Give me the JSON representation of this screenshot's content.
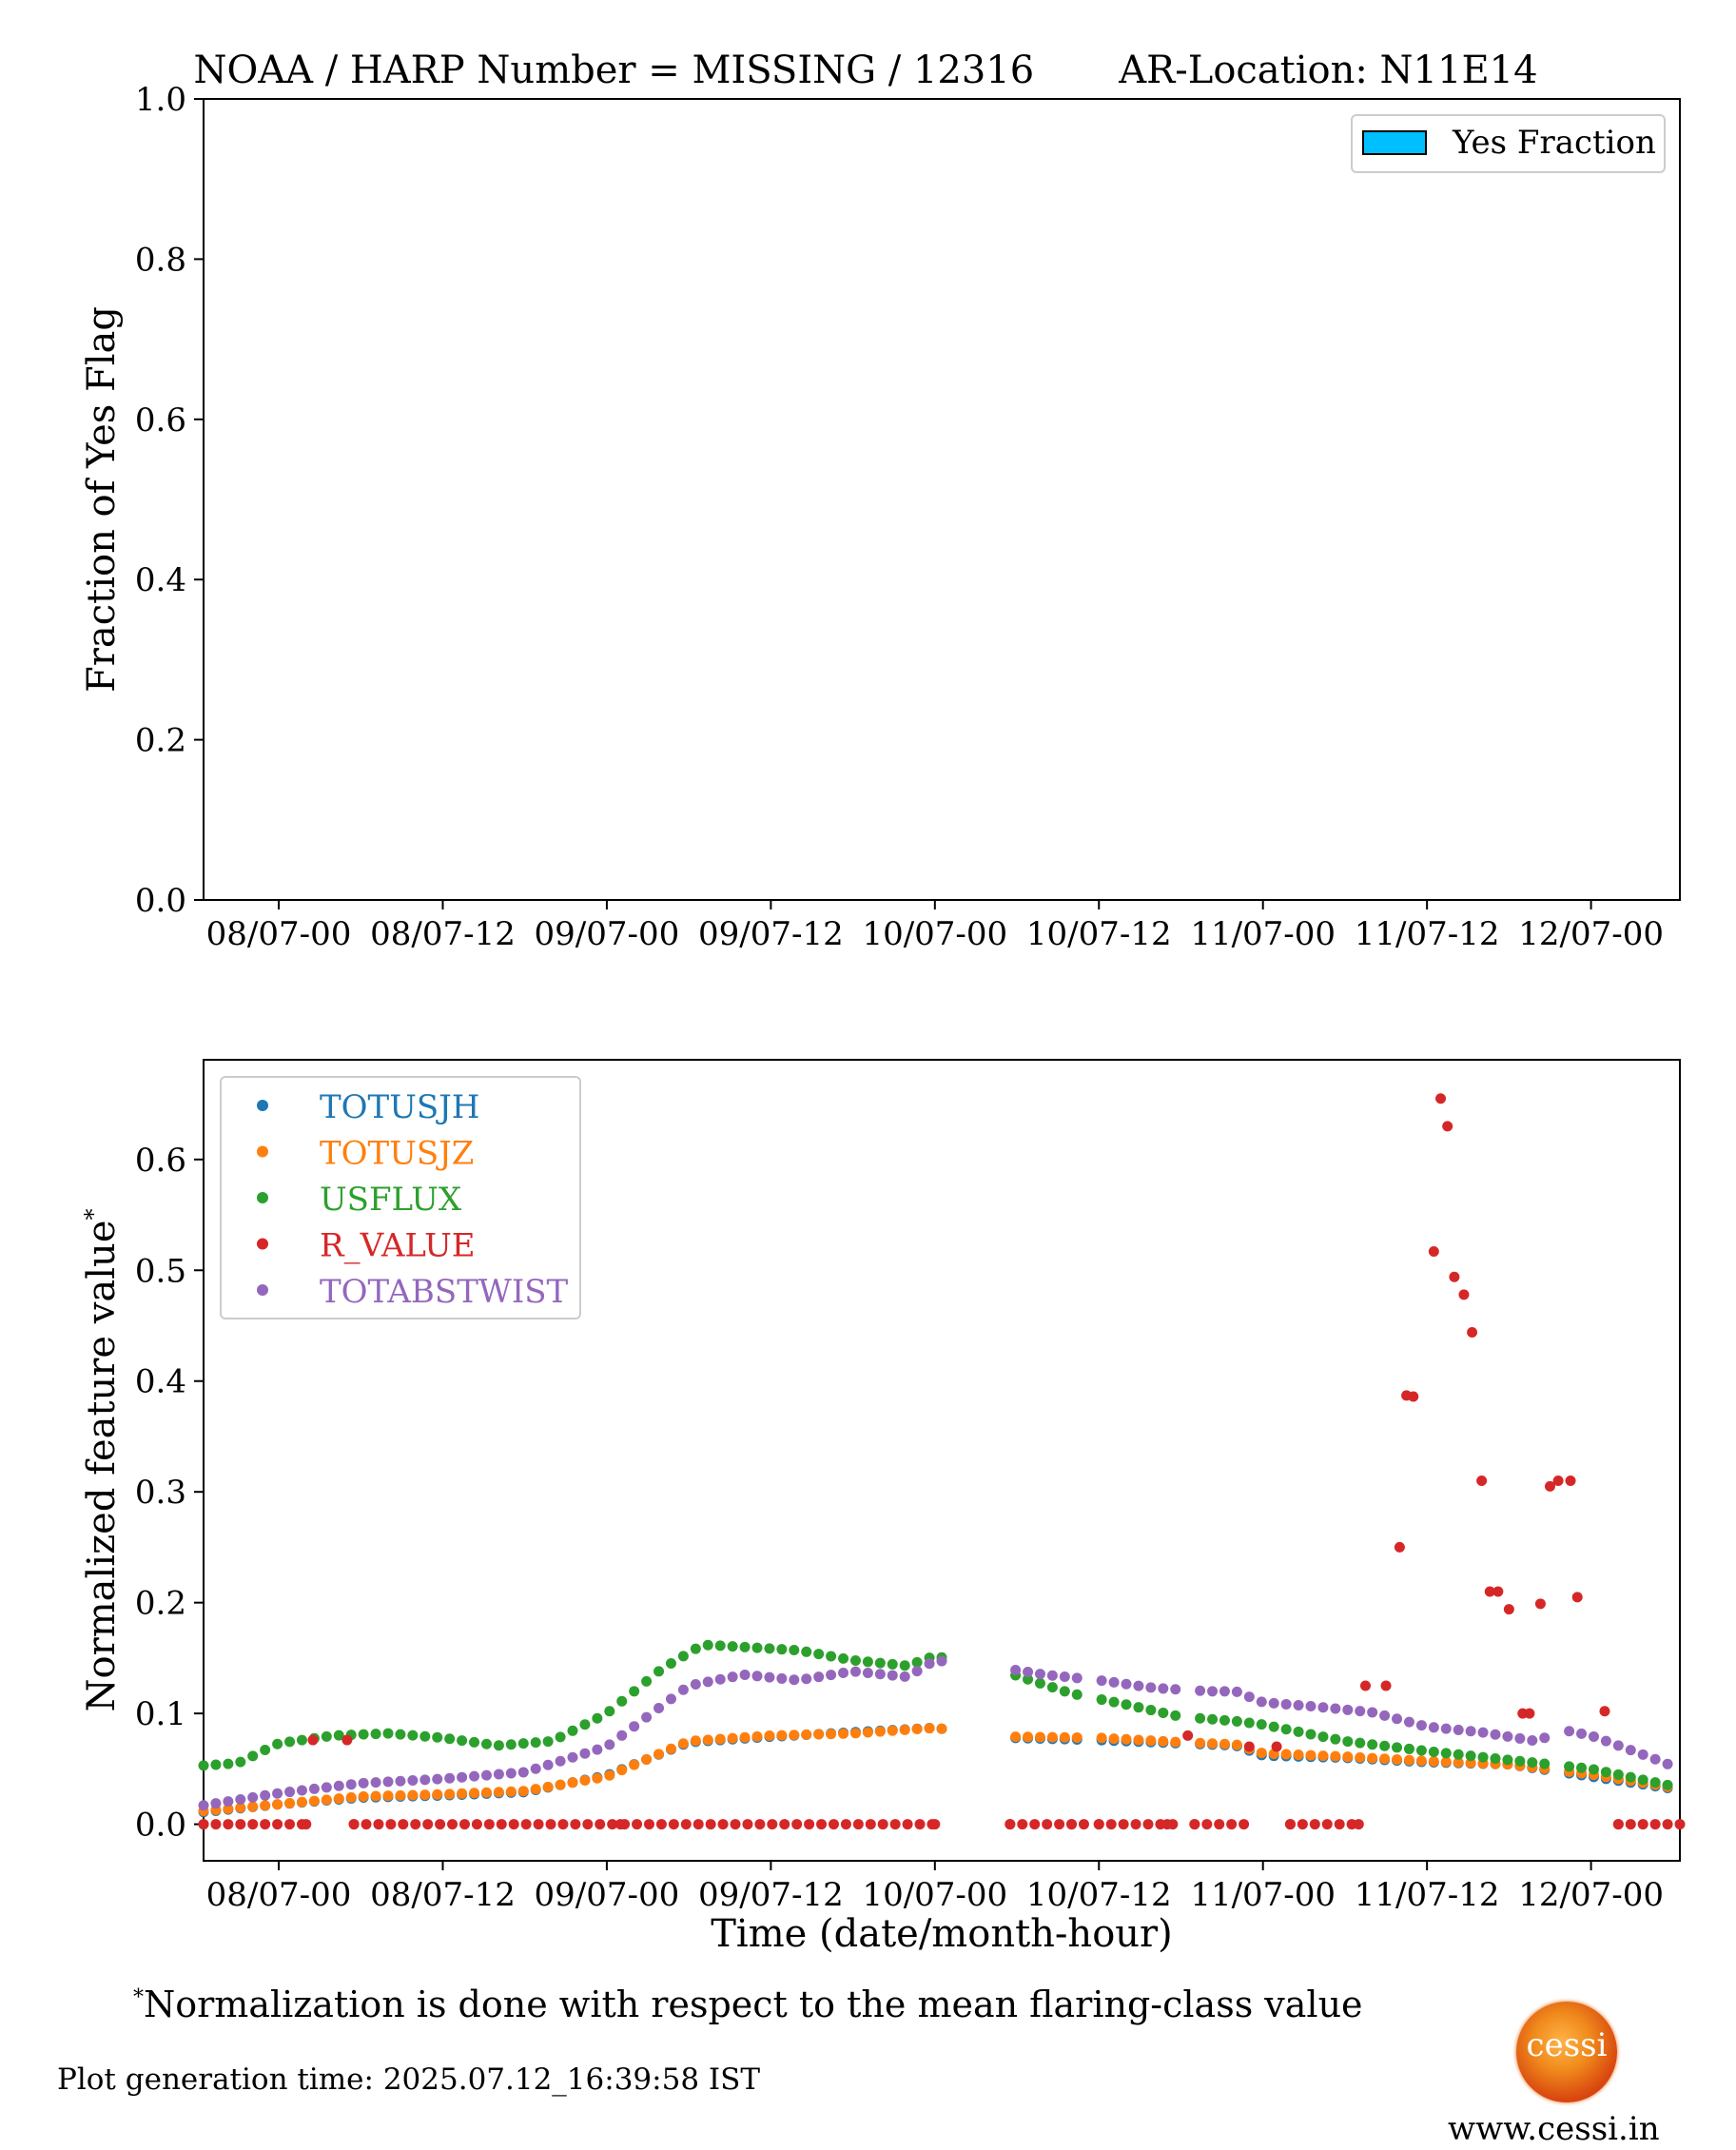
{
  "chart_data": [
    {
      "type": "bar",
      "title": "NOAA / HARP Number = MISSING / 12316       AR-Location: N11E14",
      "ylabel": "Fraction of Yes Flag",
      "ylim": [
        0,
        1
      ],
      "yticks": [
        "0.0",
        "0.2",
        "0.4",
        "0.6",
        "0.8",
        "1.0"
      ],
      "xticks": [
        "08/07-00",
        "08/07-12",
        "09/07-00",
        "09/07-12",
        "10/07-00",
        "10/07-12",
        "11/07-00",
        "11/07-12",
        "12/07-00"
      ],
      "legend": {
        "placement": "upper right",
        "entries": [
          {
            "name": "Yes Fraction",
            "color": "#00bfff"
          }
        ]
      },
      "values": []
    },
    {
      "type": "scatter",
      "xlabel": "Time (date/month-hour)",
      "ylabel": "Normalized feature value",
      "ylabel_mark": "*",
      "xlim_hours": [
        -5.5,
        102.5
      ],
      "ylim": [
        -0.033,
        0.69
      ],
      "yticks": [
        "0.0",
        "0.1",
        "0.2",
        "0.3",
        "0.4",
        "0.5",
        "0.6"
      ],
      "xticks": [
        "08/07-00",
        "08/07-12",
        "09/07-00",
        "09/07-12",
        "10/07-00",
        "10/07-12",
        "11/07-00",
        "11/07-12",
        "12/07-00"
      ],
      "legend": {
        "placement": "upper left"
      },
      "gaps_hours": [
        [
          18.2,
          18.8
        ],
        [
          48.8,
          53.2
        ],
        [
          59.2,
          59.8
        ],
        [
          66.2,
          66.8
        ],
        [
          71.2,
          71.8
        ],
        [
          93.2,
          93.8
        ]
      ],
      "series": [
        {
          "name": "TOTUSJH",
          "color": "#1f77b4",
          "points": [
            [
              -5.5,
              0.011
            ],
            [
              0,
              0.018
            ],
            [
              6,
              0.024
            ],
            [
              12,
              0.026
            ],
            [
              18,
              0.029
            ],
            [
              24,
              0.044
            ],
            [
              30,
              0.074
            ],
            [
              36,
              0.079
            ],
            [
              42,
              0.083
            ],
            [
              48,
              0.087
            ],
            [
              53.5,
              0.078
            ],
            [
              60,
              0.076
            ],
            [
              66,
              0.073
            ],
            [
              70,
              0.071
            ],
            [
              72,
              0.062
            ],
            [
              78,
              0.06
            ],
            [
              84,
              0.056
            ],
            [
              90,
              0.054
            ],
            [
              96,
              0.043
            ],
            [
              102.5,
              0.031
            ]
          ]
        },
        {
          "name": "TOTUSJZ",
          "color": "#ff7f0e",
          "points": [
            [
              -5.5,
              0.012
            ],
            [
              0,
              0.018
            ],
            [
              6,
              0.025
            ],
            [
              12,
              0.027
            ],
            [
              18,
              0.03
            ],
            [
              24,
              0.043
            ],
            [
              30,
              0.075
            ],
            [
              36,
              0.08
            ],
            [
              42,
              0.082
            ],
            [
              48,
              0.087
            ],
            [
              53.5,
              0.079
            ],
            [
              60,
              0.078
            ],
            [
              66,
              0.074
            ],
            [
              70,
              0.072
            ],
            [
              72,
              0.064
            ],
            [
              78,
              0.061
            ],
            [
              84,
              0.057
            ],
            [
              90,
              0.054
            ],
            [
              96,
              0.045
            ],
            [
              102.5,
              0.032
            ]
          ]
        },
        {
          "name": "USFLUX",
          "color": "#2ca02c",
          "points": [
            [
              -5.5,
              0.053
            ],
            [
              -3,
              0.055
            ],
            [
              0,
              0.073
            ],
            [
              4,
              0.08
            ],
            [
              8,
              0.082
            ],
            [
              12,
              0.078
            ],
            [
              16,
              0.071
            ],
            [
              20,
              0.075
            ],
            [
              24,
              0.1
            ],
            [
              28,
              0.14
            ],
            [
              31,
              0.162
            ],
            [
              34,
              0.16
            ],
            [
              38,
              0.157
            ],
            [
              42,
              0.148
            ],
            [
              46,
              0.143
            ],
            [
              48,
              0.152
            ],
            [
              53.5,
              0.136
            ],
            [
              58,
              0.118
            ],
            [
              62,
              0.108
            ],
            [
              66,
              0.097
            ],
            [
              70,
              0.093
            ],
            [
              72,
              0.09
            ],
            [
              78,
              0.075
            ],
            [
              84,
              0.066
            ],
            [
              90,
              0.058
            ],
            [
              96,
              0.05
            ],
            [
              102.5,
              0.033
            ]
          ]
        },
        {
          "name": "R_VALUE",
          "color": "#d62728",
          "points": [
            [
              -5.5,
              0
            ],
            [
              2,
              0
            ],
            [
              2.5,
              0.076
            ],
            [
              5,
              0.076
            ],
            [
              5.5,
              0
            ],
            [
              25,
              0
            ],
            [
              48,
              0
            ],
            [
              53.5,
              0
            ],
            [
              58,
              0
            ],
            [
              60,
              0
            ],
            [
              65,
              0
            ],
            [
              66.5,
              0.08
            ],
            [
              67,
              0
            ],
            [
              71,
              0.07
            ],
            [
              73,
              0.07
            ],
            [
              74,
              0
            ],
            [
              79,
              0
            ],
            [
              79.5,
              0.125
            ],
            [
              81,
              0.125
            ],
            [
              82,
              0.25
            ],
            [
              82.5,
              0.387
            ],
            [
              83,
              0.386
            ],
            [
              84.5,
              0.517
            ],
            [
              85,
              0.655
            ],
            [
              85.5,
              0.63
            ],
            [
              86,
              0.494
            ],
            [
              86.7,
              0.478
            ],
            [
              87.3,
              0.444
            ],
            [
              88,
              0.31
            ],
            [
              88.6,
              0.21
            ],
            [
              89.2,
              0.21
            ],
            [
              90,
              0.194
            ],
            [
              91,
              0.1
            ],
            [
              91.5,
              0.1
            ],
            [
              92.3,
              0.199
            ],
            [
              93,
              0.305
            ],
            [
              93.6,
              0.31
            ],
            [
              94.5,
              0.31
            ],
            [
              95,
              0.205
            ],
            [
              97,
              0.102
            ],
            [
              98,
              0
            ],
            [
              102.5,
              0
            ]
          ]
        },
        {
          "name": "TOTABSTWIST",
          "color": "#9467bd",
          "points": [
            [
              -5.5,
              0.017
            ],
            [
              0,
              0.028
            ],
            [
              6,
              0.037
            ],
            [
              12,
              0.041
            ],
            [
              18,
              0.047
            ],
            [
              24,
              0.07
            ],
            [
              30,
              0.125
            ],
            [
              34,
              0.135
            ],
            [
              38,
              0.13
            ],
            [
              42,
              0.138
            ],
            [
              46,
              0.133
            ],
            [
              48,
              0.148
            ],
            [
              53.5,
              0.14
            ],
            [
              56,
              0.135
            ],
            [
              60,
              0.13
            ],
            [
              64,
              0.123
            ],
            [
              68,
              0.12
            ],
            [
              70,
              0.12
            ],
            [
              72,
              0.11
            ],
            [
              76,
              0.106
            ],
            [
              80,
              0.101
            ],
            [
              84,
              0.088
            ],
            [
              88,
              0.083
            ],
            [
              92,
              0.075
            ],
            [
              94,
              0.085
            ],
            [
              96,
              0.08
            ],
            [
              100,
              0.062
            ],
            [
              102.5,
              0.05
            ]
          ]
        }
      ]
    }
  ],
  "footnote": {
    "mark": "*",
    "text": "Normalization is done with respect to the mean flaring-class value"
  },
  "generation_time": "Plot generation time: 2025.07.12_16:39:58 IST",
  "logo": {
    "text": "cessi"
  },
  "website": "www.cessi.in"
}
